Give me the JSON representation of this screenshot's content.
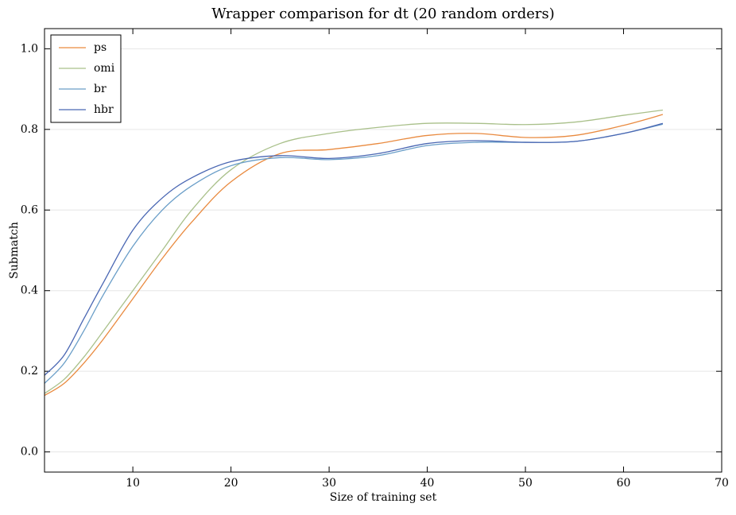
{
  "chart_data": {
    "type": "line",
    "title": "Wrapper comparison for dt (20 random orders)",
    "x_label": "Size of training set",
    "y_label": "Submatch",
    "x": [
      1,
      3,
      5,
      7,
      10,
      13,
      16,
      20,
      25,
      30,
      35,
      40,
      45,
      50,
      55,
      60,
      64
    ],
    "series": [
      {
        "name": "ps",
        "color": "#e98a3f",
        "values": [
          0.14,
          0.17,
          0.22,
          0.28,
          0.38,
          0.48,
          0.57,
          0.67,
          0.74,
          0.75,
          0.765,
          0.785,
          0.79,
          0.78,
          0.785,
          0.81,
          0.837
        ]
      },
      {
        "name": "omi",
        "color": "#a9c08a",
        "values": [
          0.145,
          0.18,
          0.235,
          0.3,
          0.4,
          0.5,
          0.6,
          0.7,
          0.765,
          0.79,
          0.805,
          0.815,
          0.815,
          0.812,
          0.818,
          0.835,
          0.848
        ]
      },
      {
        "name": "br",
        "color": "#6a9ec8",
        "values": [
          0.17,
          0.22,
          0.3,
          0.39,
          0.51,
          0.6,
          0.66,
          0.71,
          0.73,
          0.725,
          0.735,
          0.76,
          0.768,
          0.768,
          0.77,
          0.79,
          0.813
        ]
      },
      {
        "name": "hbr",
        "color": "#4a67b3",
        "values": [
          0.19,
          0.24,
          0.33,
          0.42,
          0.55,
          0.63,
          0.68,
          0.72,
          0.735,
          0.728,
          0.74,
          0.765,
          0.772,
          0.768,
          0.77,
          0.79,
          0.815
        ]
      }
    ],
    "xlim": [
      1,
      70
    ],
    "ylim": [
      -0.05,
      1.05
    ],
    "xticks": [
      10,
      20,
      30,
      40,
      50,
      60,
      70
    ],
    "yticks": [
      {
        "value": 0,
        "label": "0.0"
      },
      0.2,
      0.4,
      0.6,
      0.8,
      {
        "value": 1,
        "label": "1.0"
      }
    ],
    "grid": true,
    "legend": "upper left"
  }
}
